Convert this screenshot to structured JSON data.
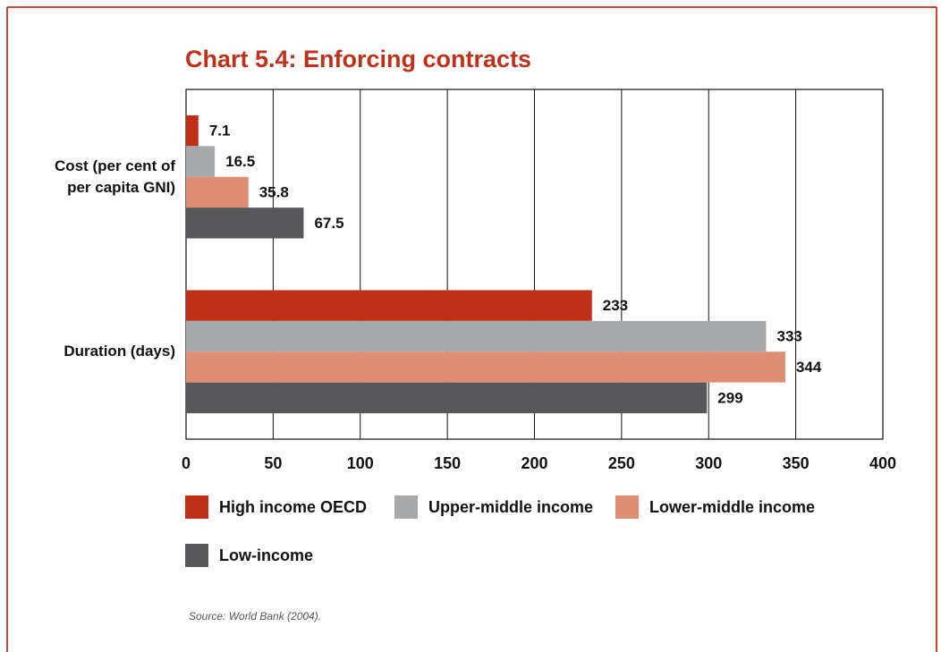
{
  "chart_data": {
    "type": "hbar",
    "title": "Chart 5.4: Enforcing contracts",
    "categories": [
      "Cost (per cent of per capita GNI)",
      "Duration (days)"
    ],
    "series": [
      {
        "name": "High income OECD",
        "color": "#bf3018",
        "values": [
          7.1,
          233
        ]
      },
      {
        "name": "Upper-middle income",
        "color": "#a8a9ab",
        "values": [
          16.5,
          333
        ]
      },
      {
        "name": "Lower-middle income",
        "color": "#e08e72",
        "values": [
          35.8,
          344
        ]
      },
      {
        "name": "Low-income",
        "color": "#58585a",
        "values": [
          67.5,
          299
        ]
      }
    ],
    "xlim": [
      0,
      400
    ],
    "xticks": [
      0,
      50,
      100,
      150,
      200,
      250,
      300,
      350,
      400
    ],
    "grid": true,
    "source": "Source: World Bank (2004)."
  }
}
